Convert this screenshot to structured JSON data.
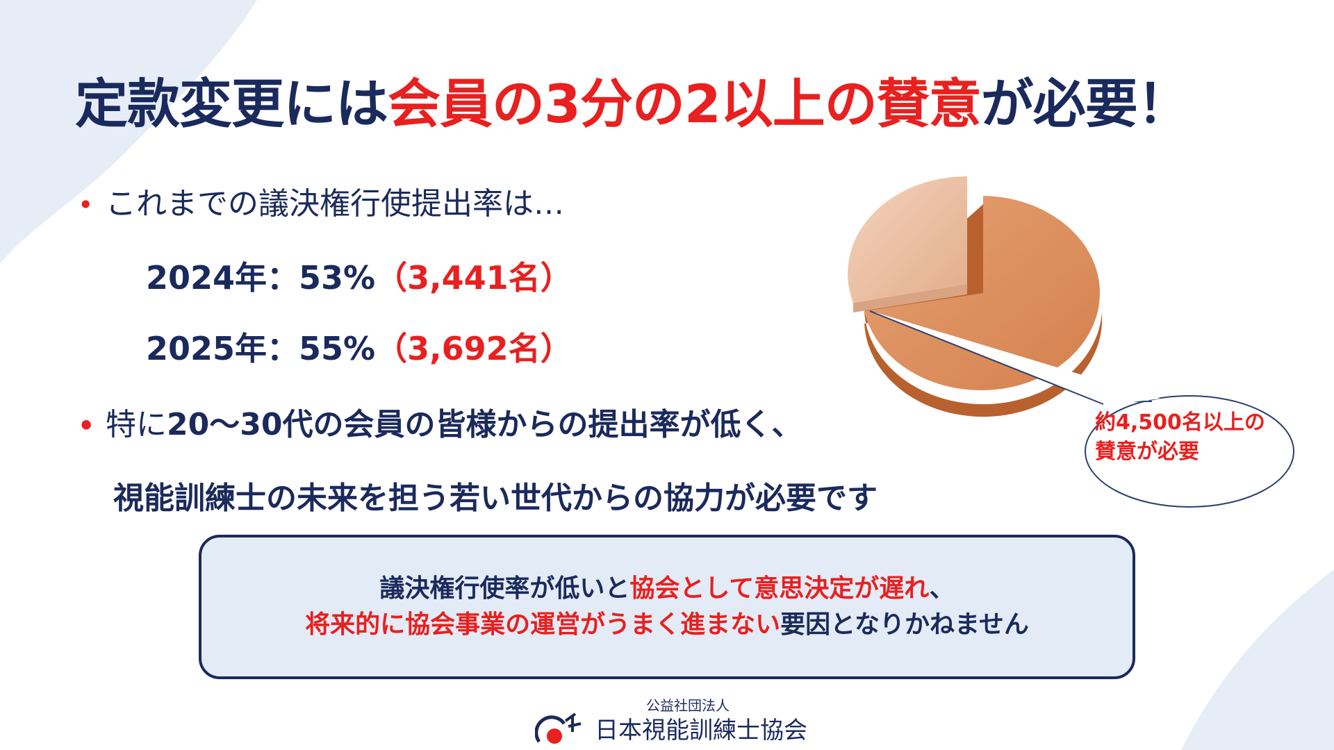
{
  "title": {
    "part1": "定款変更には",
    "part2": "会員の3分の2以上の賛意",
    "part3": "が必要！"
  },
  "bullets": {
    "first": "これまでの議決権行使提出率は…",
    "second_lead": "特に",
    "second_bold": "20～30代の会員の皆様からの提出率が低く、",
    "second_line2": "視能訓練士の未来を担う若い世代からの協力が必要です"
  },
  "rates": [
    {
      "label": "2024年：53%",
      "count": "（3,441名）"
    },
    {
      "label": "2025年：55%",
      "count": "（3,692名）"
    }
  ],
  "notice": {
    "l1_a": "議決権行使率が低いと",
    "l1_b": "協会として意思決定が遅れ",
    "l1_c": "、",
    "l2_a": "将来的に協会事業の運営がうまく進まない",
    "l2_b": "要因となりかねません"
  },
  "callout": {
    "line1": "約4,500名以上の",
    "line2": "賛意が必要"
  },
  "footer": {
    "org_type": "公益社団法人",
    "org_name": "日本視能訓練士協会"
  },
  "colors": {
    "navy": "#1b2a5c",
    "red": "#e8201f",
    "pie_main": "#d98a57",
    "pie_slice": "#efc4a8",
    "notice_bg": "#e3ebf6"
  }
}
